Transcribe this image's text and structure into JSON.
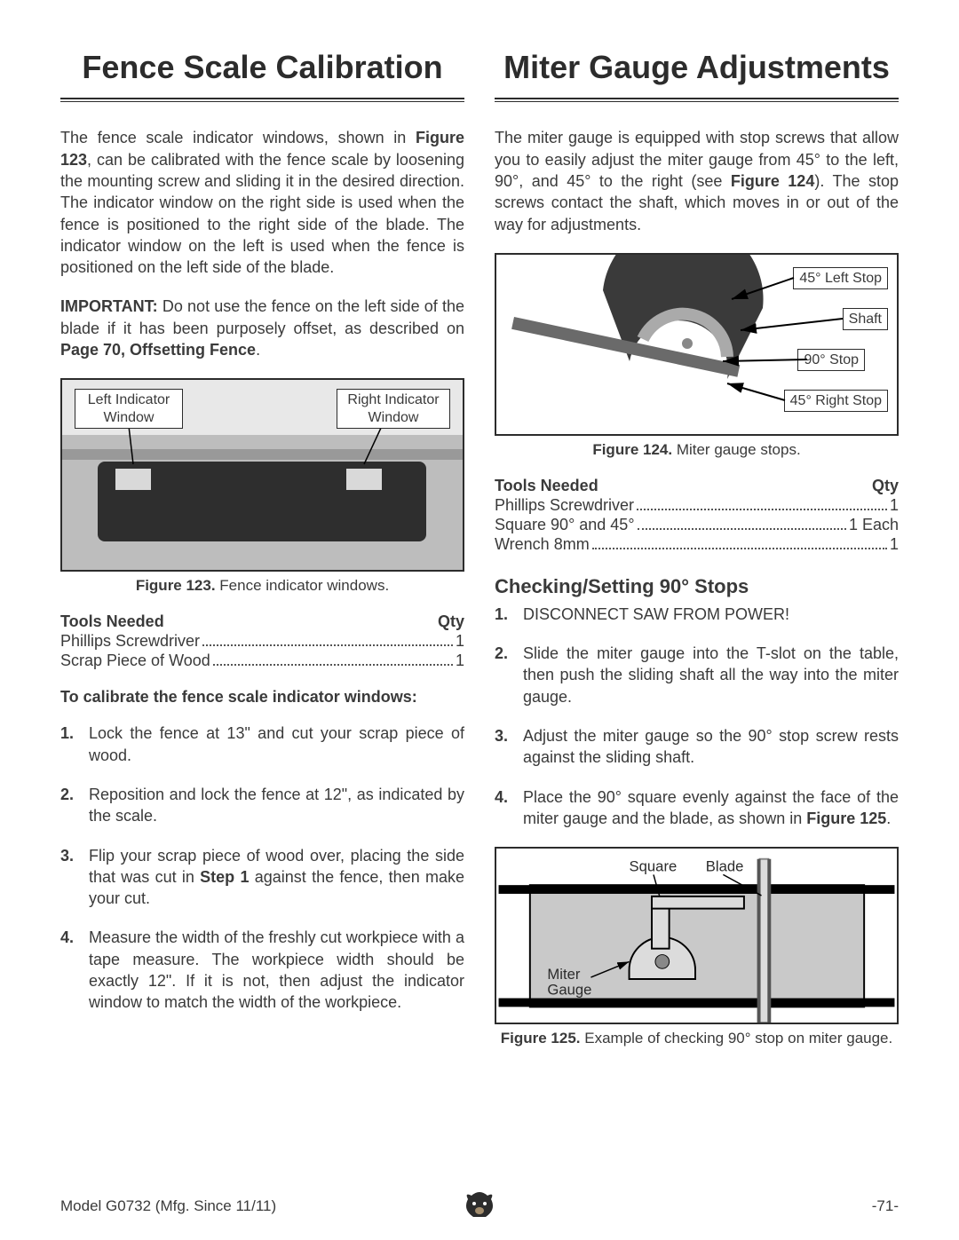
{
  "left": {
    "title": "Fence Scale Calibration",
    "para1_pre": "The fence scale indicator windows, shown in ",
    "para1_bold": "Figure 123",
    "para1_post": ", can be calibrated with the fence scale by loosening the mounting screw and sliding it in the desired direction. The indicator window on the right side is used when the fence is positioned to the right side of the blade. The indicator window on the left is used when the fence is positioned on the left side of the blade.",
    "important_label": "IMPORTANT:",
    "important_text": " Do not use the fence on the left side of the blade if it has been purposely offset, as described on ",
    "important_ref": "Page 70, Offsetting Fence",
    "fig123": {
      "left_label": "Left Indicator Window",
      "right_label": "Right Indicator Window",
      "caption_bold": "Figure 123.",
      "caption": " Fence indicator windows."
    },
    "tools_header": "Tools Needed",
    "qty_header": "Qty",
    "tools": [
      {
        "label": "Phillips Screwdriver",
        "qty": "1"
      },
      {
        "label": "Scrap Piece of Wood",
        "qty": "1"
      }
    ],
    "instr_title": "To calibrate the fence scale indicator windows:",
    "steps_raw": [
      "Lock the fence at 13\" and cut your scrap piece of wood.",
      "Reposition and lock the fence at 12\", as indicated by the scale.",
      "Flip your scrap piece of wood over, placing the side that was cut in <b>Step 1</b> against the fence, then make your cut.",
      "Measure the width of the freshly cut workpiece with a tape measure. The workpiece width should be exactly 12\". If it is not, then adjust the indicator window to match the width of the workpiece."
    ]
  },
  "right": {
    "title": "Miter Gauge Adjustments",
    "para1_pre": "The miter gauge is equipped with stop screws that allow you to easily adjust the miter gauge from 45° to the left, 90°, and 45° to the right (see ",
    "para1_bold": "Figure 124",
    "para1_post": "). The stop screws contact the shaft, which moves in or out of the way for adjustments.",
    "fig124": {
      "labels": [
        "45° Left Stop",
        "Shaft",
        "90° Stop",
        "45° Right Stop"
      ],
      "caption_bold": "Figure 124.",
      "caption": " Miter gauge stops."
    },
    "tools_header": "Tools Needed",
    "qty_header": "Qty",
    "tools": [
      {
        "label": "Phillips Screwdriver",
        "qty": "1"
      },
      {
        "label": "Square 90° and 45°",
        "qty": "1 Each"
      },
      {
        "label": "Wrench 8mm",
        "qty": "1"
      }
    ],
    "subhead": "Checking/Setting 90° Stops",
    "steps_raw": [
      "DISCONNECT SAW FROM POWER!",
      "Slide the miter gauge into the T-slot on the table, then push the sliding shaft all the way into the miter gauge.",
      "Adjust the miter gauge so the 90° stop screw rests against the sliding shaft.",
      "Place the 90° square evenly against the face of the miter gauge and the blade, as shown in <b>Figure 125</b>."
    ],
    "fig125": {
      "square": "Square",
      "blade": "Blade",
      "miter": "Miter Gauge",
      "caption_bold": "Figure 125.",
      "caption": " Example of checking 90° stop on miter gauge."
    }
  },
  "footer": {
    "model": "Model G0732 (Mfg. Since 11/11)",
    "page": "-71-"
  },
  "colors": {
    "text": "#3a3a3a",
    "rule": "#2c2c2c"
  }
}
